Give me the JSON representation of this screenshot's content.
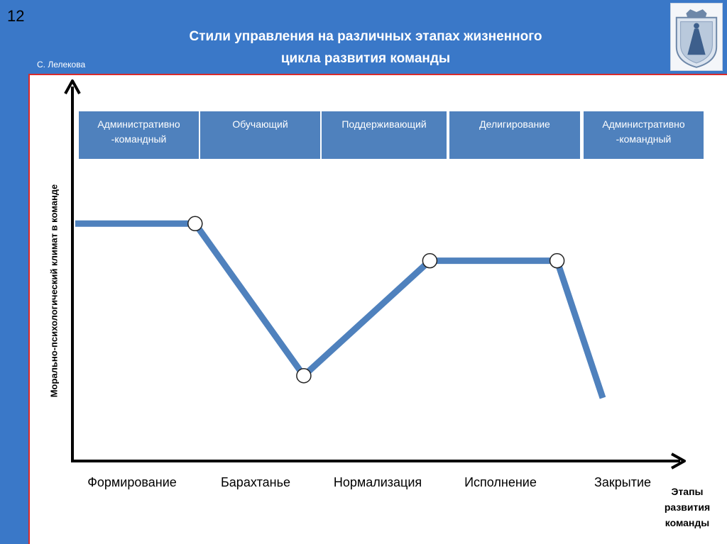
{
  "slide_number": "12",
  "title_line1": "Стили управления на различных этапах жизненного",
  "title_line2": "цикла развития команды",
  "author": "С. Лелекова",
  "colors": {
    "line": "#4f81bd",
    "box": "#4f81bd",
    "frame": "#d92b2b",
    "background": "#3a78c8"
  },
  "stage_styles": [
    {
      "line1": "Административно",
      "line2": "-командный"
    },
    {
      "line1": "Обучающий",
      "line2": ""
    },
    {
      "line1": "Поддерживающий",
      "line2": ""
    },
    {
      "line1": "Делигирование",
      "line2": ""
    },
    {
      "line1": "Административно",
      "line2": "-командный"
    }
  ],
  "chart_data": {
    "type": "line",
    "title": "",
    "xlabel_lines": [
      "Этапы",
      "развития",
      "команды"
    ],
    "ylabel": "Морально-психологический климат в команде",
    "categories": [
      "Формирование",
      "Барахтанье",
      "Нормализация",
      "Исполнение",
      "Закрытие"
    ],
    "ylim": [
      0,
      10
    ],
    "grid": false,
    "series": [
      {
        "x": [
          0.0,
          0.97,
          1.85,
          2.87,
          3.9,
          4.27
        ],
        "y": [
          6.4,
          6.4,
          2.3,
          5.4,
          5.4,
          1.7
        ],
        "markers": [
          false,
          true,
          true,
          true,
          true,
          false
        ]
      }
    ]
  }
}
